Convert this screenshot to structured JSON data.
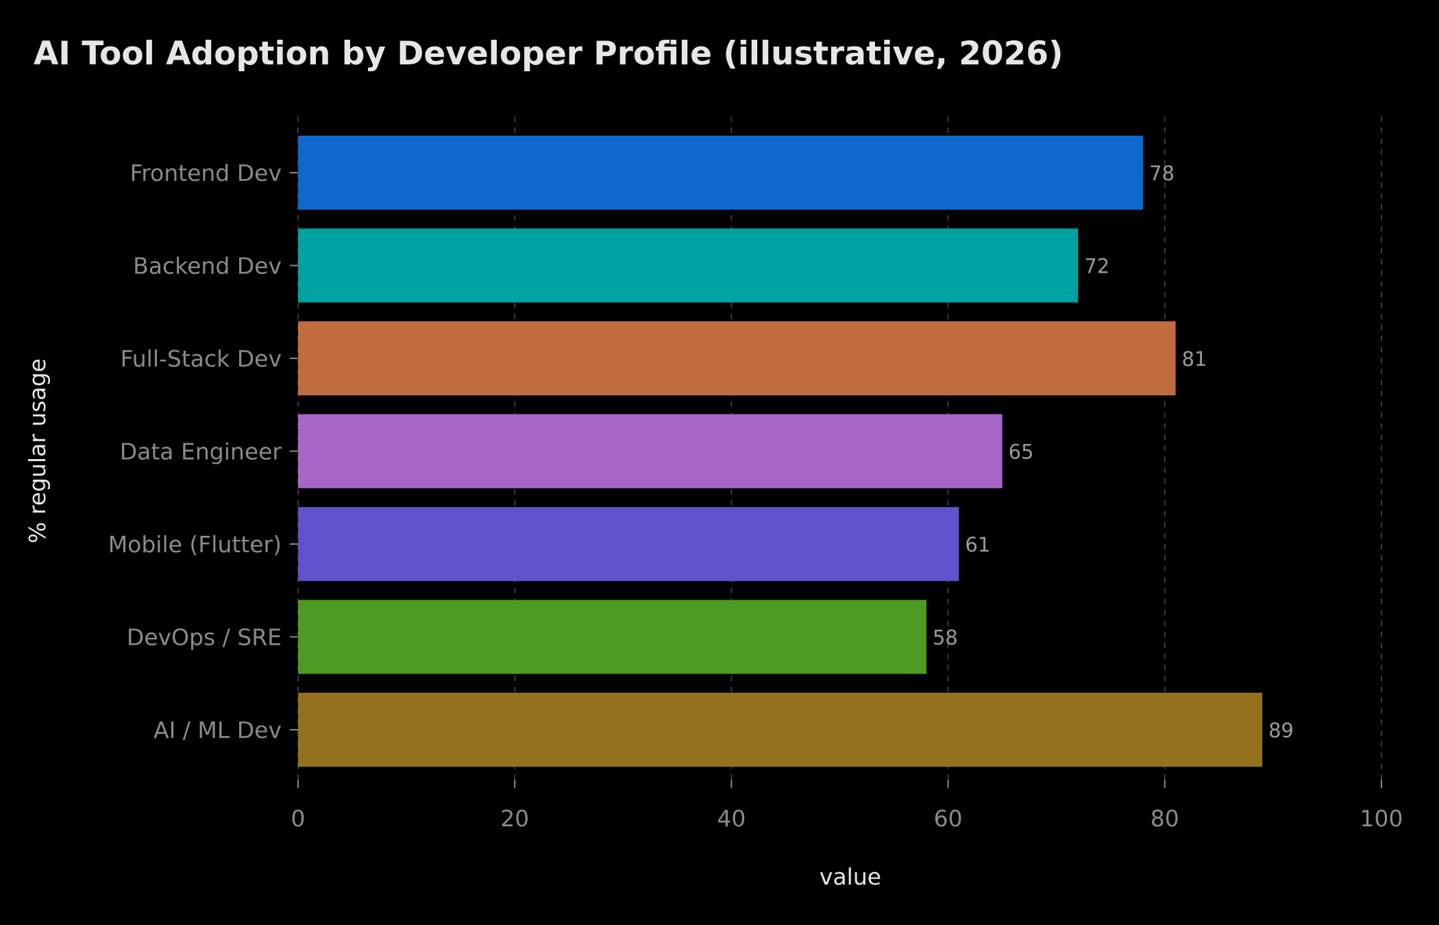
{
  "chart_data": {
    "type": "bar",
    "orientation": "horizontal",
    "title": "AI Tool Adoption by Developer Profile (illustrative, 2026)",
    "xlabel": "value",
    "ylabel": "% regular usage",
    "categories": [
      "Frontend Dev",
      "Backend Dev",
      "Full-Stack Dev",
      "Data Engineer",
      "Mobile (Flutter)",
      "DevOps / SRE",
      "AI / ML Dev"
    ],
    "values": [
      78,
      72,
      81,
      65,
      61,
      58,
      89
    ],
    "value_labels": [
      "78",
      "72",
      "81",
      "65",
      "61",
      "58",
      "89"
    ],
    "colors": [
      "#1168cc",
      "#00a2a2",
      "#c06c3e",
      "#a866c8",
      "#5f52cc",
      "#4d9b25",
      "#94711e"
    ],
    "xlim": [
      0,
      100
    ],
    "xticks": [
      0,
      20,
      40,
      60,
      80,
      100
    ],
    "xtick_labels": [
      "0",
      "20",
      "40",
      "60",
      "80",
      "100"
    ],
    "grid": "x, dashed",
    "legend": "none",
    "background": "#000000"
  }
}
